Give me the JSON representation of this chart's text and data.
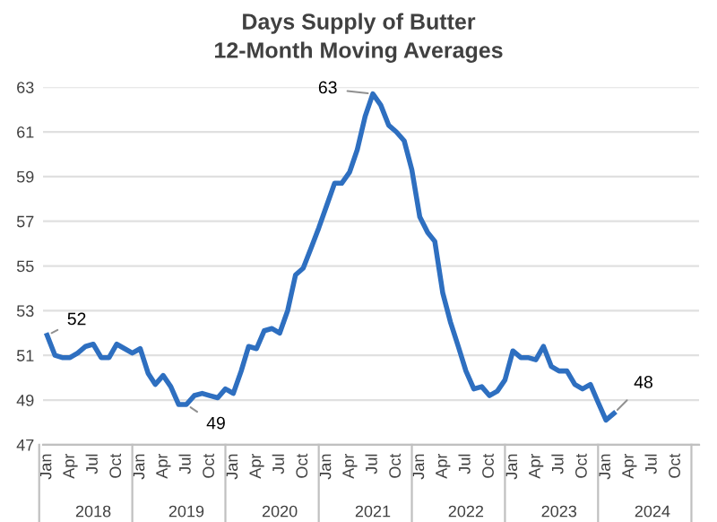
{
  "chart_data": {
    "type": "line",
    "title": "Days Supply of Butter",
    "subtitle": "12-Month Moving Averages",
    "x": [
      "2018-01",
      "2018-02",
      "2018-03",
      "2018-04",
      "2018-05",
      "2018-06",
      "2018-07",
      "2018-08",
      "2018-09",
      "2018-10",
      "2018-11",
      "2018-12",
      "2019-01",
      "2019-02",
      "2019-03",
      "2019-04",
      "2019-05",
      "2019-06",
      "2019-07",
      "2019-08",
      "2019-09",
      "2019-10",
      "2019-11",
      "2019-12",
      "2020-01",
      "2020-02",
      "2020-03",
      "2020-04",
      "2020-05",
      "2020-06",
      "2020-07",
      "2020-08",
      "2020-09",
      "2020-10",
      "2020-11",
      "2020-12",
      "2021-01",
      "2021-02",
      "2021-03",
      "2021-04",
      "2021-05",
      "2021-06",
      "2021-07",
      "2021-08",
      "2021-09",
      "2021-10",
      "2021-11",
      "2021-12",
      "2022-01",
      "2022-02",
      "2022-03",
      "2022-04",
      "2022-05",
      "2022-06",
      "2022-07",
      "2022-08",
      "2022-09",
      "2022-10",
      "2022-11",
      "2022-12",
      "2023-01",
      "2023-02",
      "2023-03",
      "2023-04",
      "2023-05",
      "2023-06",
      "2023-07",
      "2023-08",
      "2023-09",
      "2023-10",
      "2023-11",
      "2023-12",
      "2024-01",
      "2024-02"
    ],
    "series": [
      {
        "color": "#2e6fc0",
        "values": [
          51.9,
          51.0,
          50.9,
          50.9,
          51.1,
          51.4,
          51.5,
          50.9,
          50.9,
          51.5,
          51.3,
          51.1,
          51.3,
          50.2,
          49.7,
          50.1,
          49.6,
          48.8,
          48.8,
          49.2,
          49.3,
          49.2,
          49.1,
          49.5,
          49.3,
          50.3,
          51.4,
          51.3,
          52.1,
          52.2,
          52.0,
          53.0,
          54.6,
          54.9,
          55.8,
          56.7,
          57.7,
          58.7,
          58.7,
          59.2,
          60.2,
          61.7,
          62.7,
          62.2,
          61.3,
          61.0,
          60.6,
          59.3,
          57.2,
          56.5,
          56.1,
          53.8,
          52.5,
          51.4,
          50.3,
          49.5,
          49.6,
          49.2,
          49.4,
          49.9,
          51.2,
          50.9,
          50.9,
          50.8,
          51.4,
          50.5,
          50.3,
          50.3,
          49.7,
          49.5,
          49.7,
          48.9,
          48.1,
          48.4
        ]
      }
    ],
    "xlim": [
      "2017-12-16",
      "2024-12-31"
    ],
    "xticks": [
      {
        "value": "2018-01",
        "label": "Jan"
      },
      {
        "value": "2018-04",
        "label": "Apr"
      },
      {
        "value": "2018-07",
        "label": "Jul"
      },
      {
        "value": "2018-10",
        "label": "Oct"
      },
      {
        "value": "2019-01",
        "label": "Jan"
      },
      {
        "value": "2019-04",
        "label": "Apr"
      },
      {
        "value": "2019-07",
        "label": "Jul"
      },
      {
        "value": "2019-10",
        "label": "Oct"
      },
      {
        "value": "2020-01",
        "label": "Jan"
      },
      {
        "value": "2020-04",
        "label": "Apr"
      },
      {
        "value": "2020-07",
        "label": "Jul"
      },
      {
        "value": "2020-10",
        "label": "Oct"
      },
      {
        "value": "2021-01",
        "label": "Jan"
      },
      {
        "value": "2021-04",
        "label": "Apr"
      },
      {
        "value": "2021-07",
        "label": "Jul"
      },
      {
        "value": "2021-10",
        "label": "Oct"
      },
      {
        "value": "2022-01",
        "label": "Jan"
      },
      {
        "value": "2022-04",
        "label": "Apr"
      },
      {
        "value": "2022-07",
        "label": "Jul"
      },
      {
        "value": "2022-10",
        "label": "Oct"
      },
      {
        "value": "2023-01",
        "label": "Jan"
      },
      {
        "value": "2023-04",
        "label": "Apr"
      },
      {
        "value": "2023-07",
        "label": "Jul"
      },
      {
        "value": "2023-10",
        "label": "Oct"
      },
      {
        "value": "2024-01",
        "label": "Jan"
      },
      {
        "value": "2024-04",
        "label": "Apr"
      },
      {
        "value": "2024-07",
        "label": "Jul"
      },
      {
        "value": "2024-10",
        "label": "Oct"
      }
    ],
    "ylim": [
      47,
      63
    ],
    "yticks": [
      47,
      49,
      51,
      53,
      55,
      57,
      59,
      61,
      63
    ],
    "grid": "y",
    "marker": "none",
    "line_style": "solid",
    "annotations": [
      {
        "text": "52",
        "x": "2018-01",
        "y": 51.9
      },
      {
        "text": "49",
        "x": "2019-07",
        "y": 48.8
      },
      {
        "text": "63",
        "x": "2021-07",
        "y": 62.7
      },
      {
        "text": "48",
        "x": "2024-02",
        "y": 48.4
      },
      "2018",
      "2019",
      "2020",
      "2021",
      "2022",
      "2023",
      "2024"
    ]
  }
}
